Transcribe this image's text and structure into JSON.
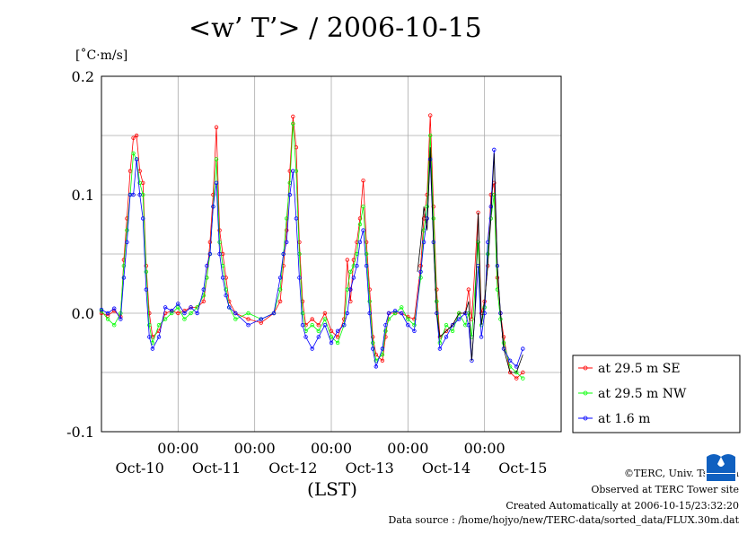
{
  "title": "<w’ T’> / 2006-10-15",
  "unit": "[˚C·m/s]",
  "xlabel": "(LST)",
  "footer": {
    "copyright": "©TERC, Univ. Tsukuba",
    "observed": "Observed at TERC Tower site",
    "created": "Created Automatically at 2006-10-15/23:32:20",
    "source": "Data source : /home/hojyo/new/TERC-data/sorted_data/FLUX.30m.dat"
  },
  "logo_text": "TERC",
  "chart_data": {
    "type": "line",
    "title": "<w’ T’> / 2006-10-15",
    "xlabel": "(LST)",
    "ylabel": "[˚C·m/s]",
    "x_unit": "hours since Oct-10 00:00 (LST)",
    "xlim": [
      -12,
      132
    ],
    "ylim": [
      -0.1,
      0.2
    ],
    "y_ticks": [
      "0.2",
      "0.1",
      "0.0",
      "-0.1"
    ],
    "y_tick_values": [
      0.2,
      0.1,
      0.0,
      -0.1
    ],
    "x_time_ticks": [
      "00:00",
      "00:00",
      "00:00",
      "00:00",
      "00:00"
    ],
    "x_time_tick_hours": [
      12,
      36,
      60,
      84,
      108
    ],
    "x_date_labels": [
      "Oct-10",
      "Oct-11",
      "Oct-12",
      "Oct-13",
      "Oct-14",
      "Oct-15"
    ],
    "x_date_label_hours": [
      0,
      24,
      48,
      72,
      96,
      120
    ],
    "grid": true,
    "legend_position": "right",
    "series": [
      {
        "name": "at 29.5 m SE",
        "color": "#ff0000",
        "points": [
          [
            -12,
            0.0
          ],
          [
            -10,
            -0.002
          ],
          [
            -8,
            0.002
          ],
          [
            -6,
            -0.003
          ],
          [
            -5,
            0.045
          ],
          [
            -4,
            0.08
          ],
          [
            -3,
            0.12
          ],
          [
            -2,
            0.148
          ],
          [
            -1,
            0.15
          ],
          [
            0,
            0.12
          ],
          [
            1,
            0.11
          ],
          [
            2,
            0.04
          ],
          [
            3,
            0.0
          ],
          [
            4,
            -0.02
          ],
          [
            6,
            -0.015
          ],
          [
            8,
            0.0
          ],
          [
            10,
            0.002
          ],
          [
            12,
            0.0
          ],
          [
            14,
            0.002
          ],
          [
            16,
            0.005
          ],
          [
            18,
            0.005
          ],
          [
            20,
            0.01
          ],
          [
            21,
            0.03
          ],
          [
            22,
            0.06
          ],
          [
            23,
            0.1
          ],
          [
            24,
            0.157
          ],
          [
            25,
            0.07
          ],
          [
            26,
            0.05
          ],
          [
            27,
            0.03
          ],
          [
            28,
            0.01
          ],
          [
            30,
            0.0
          ],
          [
            34,
            -0.005
          ],
          [
            38,
            -0.008
          ],
          [
            42,
            0.0
          ],
          [
            44,
            0.01
          ],
          [
            45,
            0.04
          ],
          [
            46,
            0.07
          ],
          [
            47,
            0.12
          ],
          [
            48,
            0.166
          ],
          [
            49,
            0.14
          ],
          [
            50,
            0.06
          ],
          [
            51,
            0.01
          ],
          [
            52,
            -0.01
          ],
          [
            54,
            -0.005
          ],
          [
            56,
            -0.01
          ],
          [
            58,
            0.0
          ],
          [
            60,
            -0.015
          ],
          [
            62,
            -0.02
          ],
          [
            64,
            -0.005
          ],
          [
            65,
            0.045
          ],
          [
            66,
            0.01
          ],
          [
            67,
            0.045
          ],
          [
            68,
            0.06
          ],
          [
            69,
            0.08
          ],
          [
            70,
            0.112
          ],
          [
            71,
            0.06
          ],
          [
            72,
            0.02
          ],
          [
            73,
            -0.02
          ],
          [
            74,
            -0.035
          ],
          [
            76,
            -0.04
          ],
          [
            77,
            -0.02
          ],
          [
            78,
            0.0
          ],
          [
            80,
            0.0
          ],
          [
            82,
            0.0
          ],
          [
            84,
            -0.003
          ],
          [
            86,
            -0.005
          ],
          [
            88,
            0.04
          ],
          [
            89,
            0.08
          ],
          [
            90,
            0.1
          ],
          [
            91,
            0.167
          ],
          [
            92,
            0.09
          ],
          [
            93,
            0.02
          ],
          [
            94,
            -0.02
          ],
          [
            96,
            -0.015
          ],
          [
            98,
            -0.01
          ],
          [
            100,
            0.0
          ],
          [
            102,
            0.0
          ],
          [
            103,
            0.02
          ],
          [
            104,
            -0.005
          ],
          [
            106,
            0.085
          ],
          [
            107,
            0.0
          ],
          [
            108,
            0.01
          ],
          [
            109,
            0.04
          ],
          [
            110,
            0.1
          ],
          [
            111,
            0.11
          ],
          [
            112,
            0.03
          ],
          [
            113,
            0.0
          ],
          [
            114,
            -0.02
          ],
          [
            116,
            -0.05
          ],
          [
            118,
            -0.055
          ],
          [
            120,
            -0.05
          ]
        ]
      },
      {
        "name": "at 29.5 m NW",
        "color": "#00ff00",
        "points": [
          [
            -12,
            0.002
          ],
          [
            -10,
            -0.005
          ],
          [
            -8,
            -0.01
          ],
          [
            -6,
            0.0
          ],
          [
            -5,
            0.04
          ],
          [
            -4,
            0.07
          ],
          [
            -3,
            0.1
          ],
          [
            -2,
            0.135
          ],
          [
            -1,
            0.13
          ],
          [
            0,
            0.11
          ],
          [
            1,
            0.1
          ],
          [
            2,
            0.035
          ],
          [
            3,
            -0.01
          ],
          [
            4,
            -0.025
          ],
          [
            6,
            -0.01
          ],
          [
            8,
            -0.005
          ],
          [
            10,
            0.0
          ],
          [
            12,
            0.005
          ],
          [
            14,
            -0.005
          ],
          [
            16,
            0.0
          ],
          [
            18,
            0.005
          ],
          [
            20,
            0.015
          ],
          [
            21,
            0.03
          ],
          [
            22,
            0.05
          ],
          [
            23,
            0.09
          ],
          [
            24,
            0.13
          ],
          [
            25,
            0.06
          ],
          [
            26,
            0.04
          ],
          [
            27,
            0.02
          ],
          [
            28,
            0.005
          ],
          [
            30,
            -0.005
          ],
          [
            34,
            0.0
          ],
          [
            38,
            -0.005
          ],
          [
            42,
            0.0
          ],
          [
            44,
            0.02
          ],
          [
            45,
            0.05
          ],
          [
            46,
            0.08
          ],
          [
            47,
            0.11
          ],
          [
            48,
            0.16
          ],
          [
            49,
            0.12
          ],
          [
            50,
            0.05
          ],
          [
            51,
            0.0
          ],
          [
            52,
            -0.015
          ],
          [
            54,
            -0.01
          ],
          [
            56,
            -0.015
          ],
          [
            58,
            -0.005
          ],
          [
            60,
            -0.02
          ],
          [
            62,
            -0.025
          ],
          [
            64,
            -0.01
          ],
          [
            65,
            0.02
          ],
          [
            66,
            0.035
          ],
          [
            67,
            0.04
          ],
          [
            68,
            0.05
          ],
          [
            69,
            0.075
          ],
          [
            70,
            0.09
          ],
          [
            71,
            0.05
          ],
          [
            72,
            0.01
          ],
          [
            73,
            -0.025
          ],
          [
            74,
            -0.04
          ],
          [
            76,
            -0.035
          ],
          [
            77,
            -0.015
          ],
          [
            78,
            -0.005
          ],
          [
            80,
            0.0
          ],
          [
            82,
            0.005
          ],
          [
            84,
            -0.005
          ],
          [
            86,
            -0.01
          ],
          [
            88,
            0.03
          ],
          [
            89,
            0.07
          ],
          [
            90,
            0.09
          ],
          [
            91,
            0.15
          ],
          [
            92,
            0.08
          ],
          [
            93,
            0.01
          ],
          [
            94,
            -0.025
          ],
          [
            96,
            -0.01
          ],
          [
            98,
            -0.015
          ],
          [
            100,
            0.0
          ],
          [
            102,
            -0.01
          ],
          [
            103,
            0.0
          ],
          [
            104,
            -0.02
          ],
          [
            106,
            0.06
          ],
          [
            107,
            -0.01
          ],
          [
            108,
            0.005
          ],
          [
            109,
            0.05
          ],
          [
            110,
            0.08
          ],
          [
            111,
            0.1
          ],
          [
            112,
            0.02
          ],
          [
            113,
            -0.005
          ],
          [
            114,
            -0.025
          ],
          [
            116,
            -0.045
          ],
          [
            118,
            -0.05
          ],
          [
            120,
            -0.055
          ]
        ]
      },
      {
        "name": "at 1.6 m",
        "color": "#0000ff",
        "points": [
          [
            -12,
            0.003
          ],
          [
            -10,
            0.0
          ],
          [
            -8,
            0.004
          ],
          [
            -6,
            -0.005
          ],
          [
            -5,
            0.03
          ],
          [
            -4,
            0.06
          ],
          [
            -3,
            0.1
          ],
          [
            -2,
            0.1
          ],
          [
            -1,
            0.13
          ],
          [
            0,
            0.1
          ],
          [
            1,
            0.08
          ],
          [
            2,
            0.02
          ],
          [
            3,
            -0.02
          ],
          [
            4,
            -0.03
          ],
          [
            6,
            -0.02
          ],
          [
            8,
            0.005
          ],
          [
            10,
            0.002
          ],
          [
            12,
            0.008
          ],
          [
            14,
            0.0
          ],
          [
            16,
            0.005
          ],
          [
            18,
            0.0
          ],
          [
            20,
            0.02
          ],
          [
            21,
            0.04
          ],
          [
            22,
            0.05
          ],
          [
            23,
            0.09
          ],
          [
            24,
            0.11
          ],
          [
            25,
            0.05
          ],
          [
            26,
            0.03
          ],
          [
            27,
            0.015
          ],
          [
            28,
            0.005
          ],
          [
            30,
            0.0
          ],
          [
            34,
            -0.01
          ],
          [
            38,
            -0.005
          ],
          [
            42,
            0.0
          ],
          [
            44,
            0.03
          ],
          [
            45,
            0.05
          ],
          [
            46,
            0.06
          ],
          [
            47,
            0.1
          ],
          [
            48,
            0.12
          ],
          [
            49,
            0.08
          ],
          [
            50,
            0.03
          ],
          [
            51,
            -0.01
          ],
          [
            52,
            -0.02
          ],
          [
            54,
            -0.03
          ],
          [
            56,
            -0.02
          ],
          [
            58,
            -0.01
          ],
          [
            60,
            -0.025
          ],
          [
            62,
            -0.015
          ],
          [
            64,
            -0.01
          ],
          [
            65,
            0.0
          ],
          [
            66,
            0.02
          ],
          [
            67,
            0.03
          ],
          [
            68,
            0.04
          ],
          [
            69,
            0.06
          ],
          [
            70,
            0.07
          ],
          [
            71,
            0.04
          ],
          [
            72,
            0.0
          ],
          [
            73,
            -0.03
          ],
          [
            74,
            -0.045
          ],
          [
            76,
            -0.03
          ],
          [
            77,
            -0.01
          ],
          [
            78,
            0.0
          ],
          [
            80,
            0.002
          ],
          [
            82,
            0.0
          ],
          [
            84,
            -0.01
          ],
          [
            86,
            -0.015
          ],
          [
            88,
            0.035
          ],
          [
            89,
            0.06
          ],
          [
            90,
            0.08
          ],
          [
            91,
            0.13
          ],
          [
            92,
            0.06
          ],
          [
            93,
            0.0
          ],
          [
            94,
            -0.03
          ],
          [
            96,
            -0.02
          ],
          [
            98,
            -0.01
          ],
          [
            100,
            -0.005
          ],
          [
            102,
            0.0
          ],
          [
            103,
            -0.01
          ],
          [
            104,
            -0.04
          ],
          [
            106,
            0.04
          ],
          [
            107,
            -0.02
          ],
          [
            108,
            0.0
          ],
          [
            109,
            0.06
          ],
          [
            110,
            0.09
          ],
          [
            111,
            0.138
          ],
          [
            112,
            0.04
          ],
          [
            113,
            0.0
          ],
          [
            114,
            -0.03
          ],
          [
            116,
            -0.04
          ],
          [
            118,
            -0.045
          ],
          [
            120,
            -0.03
          ]
        ]
      },
      {
        "name": "",
        "color": "#000000",
        "points": [
          [
            87,
            0.035
          ],
          [
            88,
            0.06
          ],
          [
            89,
            0.09
          ],
          [
            90,
            0.07
          ],
          [
            91,
            0.14
          ],
          [
            92,
            0.06
          ],
          [
            93,
            0.0
          ],
          [
            94,
            -0.02
          ],
          [
            96,
            -0.015
          ],
          [
            98,
            -0.01
          ],
          [
            100,
            0.0
          ],
          [
            102,
            0.0
          ],
          [
            103,
            0.01
          ],
          [
            104,
            -0.04
          ],
          [
            105,
            0.0
          ],
          [
            106,
            0.085
          ],
          [
            107,
            -0.01
          ],
          [
            108,
            0.01
          ],
          [
            109,
            0.04
          ],
          [
            110,
            0.08
          ],
          [
            111,
            0.135
          ],
          [
            112,
            0.04
          ],
          [
            113,
            0.0
          ],
          [
            114,
            -0.03
          ],
          [
            116,
            -0.05
          ],
          [
            118,
            -0.05
          ],
          [
            120,
            -0.035
          ]
        ]
      }
    ]
  }
}
